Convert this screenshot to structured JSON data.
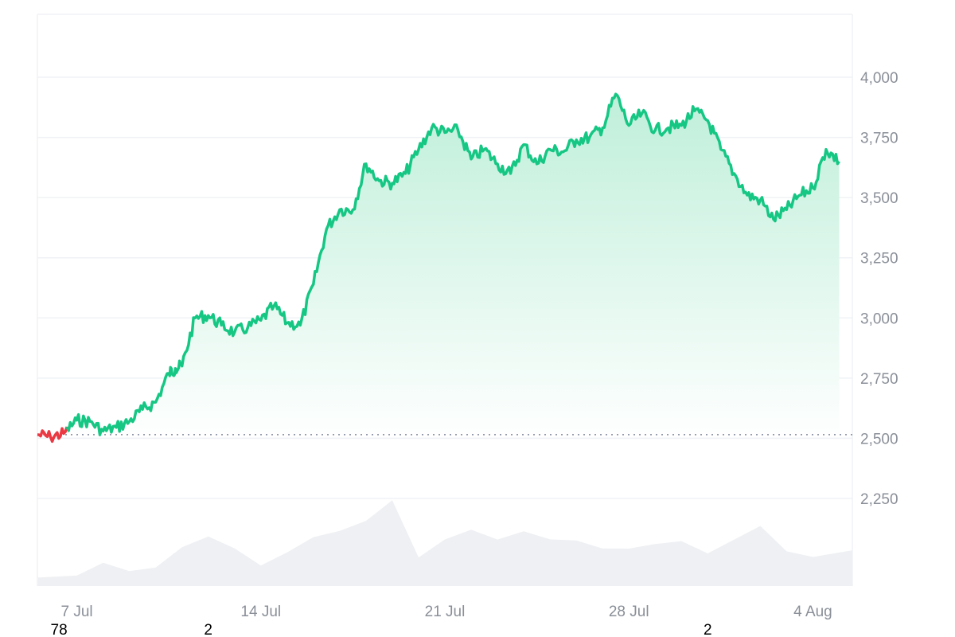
{
  "chart_data": {
    "type": "area",
    "x_axis": {
      "type": "date",
      "range": [
        "2024-07-06",
        "2024-08-05"
      ],
      "ticks": [
        {
          "date": "2024-07-07",
          "label": "7 Jul"
        },
        {
          "date": "2024-07-14",
          "label": "14 Jul"
        },
        {
          "date": "2024-07-21",
          "label": "21 Jul"
        },
        {
          "date": "2024-07-28",
          "label": "28 Jul"
        },
        {
          "date": "2024-08-04",
          "label": "4 Aug"
        }
      ]
    },
    "y_axis": {
      "position": "right",
      "range": [
        2000,
        4250
      ],
      "ticks": [
        {
          "value": 2250,
          "label": "2,250"
        },
        {
          "value": 2500,
          "label": "2,500"
        },
        {
          "value": 2750,
          "label": "2,750"
        },
        {
          "value": 3000,
          "label": "3,000"
        },
        {
          "value": 3250,
          "label": "3,250"
        },
        {
          "value": 3500,
          "label": "3,500"
        },
        {
          "value": 3750,
          "label": "3,750"
        },
        {
          "value": 4000,
          "label": "4,000"
        }
      ]
    },
    "grid": true,
    "baseline": {
      "value": 2515,
      "style": "dotted"
    },
    "price_series": {
      "x": [
        "2024-07-06T00:00",
        "2024-07-06T12:00",
        "2024-07-07T00:00",
        "2024-07-07T12:00",
        "2024-07-08T00:00",
        "2024-07-08T12:00",
        "2024-07-09T00:00",
        "2024-07-09T12:00",
        "2024-07-10T00:00",
        "2024-07-10T12:00",
        "2024-07-11T00:00",
        "2024-07-11T06:00",
        "2024-07-11T12:00",
        "2024-07-12T00:00",
        "2024-07-12T12:00",
        "2024-07-13T00:00",
        "2024-07-13T12:00",
        "2024-07-14T00:00",
        "2024-07-14T12:00",
        "2024-07-15T00:00",
        "2024-07-15T12:00",
        "2024-07-16T00:00",
        "2024-07-16T12:00",
        "2024-07-17T00:00",
        "2024-07-17T12:00",
        "2024-07-18T00:00",
        "2024-07-18T12:00",
        "2024-07-19T00:00",
        "2024-07-19T12:00",
        "2024-07-20T00:00",
        "2024-07-20T12:00",
        "2024-07-21T00:00",
        "2024-07-21T12:00",
        "2024-07-22T00:00",
        "2024-07-22T12:00",
        "2024-07-23T00:00",
        "2024-07-23T12:00",
        "2024-07-24T00:00",
        "2024-07-24T12:00",
        "2024-07-25T00:00",
        "2024-07-25T12:00",
        "2024-07-26T00:00",
        "2024-07-26T12:00",
        "2024-07-27T00:00",
        "2024-07-27T12:00",
        "2024-07-28T00:00",
        "2024-07-28T12:00",
        "2024-07-29T00:00",
        "2024-07-29T12:00",
        "2024-07-30T00:00",
        "2024-07-30T12:00",
        "2024-07-31T00:00",
        "2024-07-31T12:00",
        "2024-08-01T00:00",
        "2024-08-01T12:00",
        "2024-08-02T00:00",
        "2024-08-02T12:00",
        "2024-08-03T00:00",
        "2024-08-03T12:00",
        "2024-08-04T00:00",
        "2024-08-04T12:00",
        "2024-08-05T00:00",
        "2024-08-05T12:00"
      ],
      "y": [
        2515,
        2505,
        2520,
        2575,
        2570,
        2530,
        2545,
        2570,
        2620,
        2650,
        2770,
        2790,
        2800,
        3000,
        3010,
        2970,
        2940,
        2960,
        2990,
        3050,
        2980,
        2970,
        3140,
        3370,
        3450,
        3450,
        3640,
        3570,
        3560,
        3600,
        3700,
        3790,
        3770,
        3780,
        3660,
        3700,
        3640,
        3600,
        3720,
        3640,
        3700,
        3690,
        3740,
        3750,
        3790,
        3930,
        3800,
        3850,
        3780,
        3790,
        3800,
        3860,
        3820,
        3700,
        3600,
        3510,
        3490,
        3410,
        3450,
        3510,
        3540,
        3700,
        3650
      ]
    },
    "volume_series": {
      "x": [
        "2024-07-06",
        "2024-07-07",
        "2024-07-08",
        "2024-07-09",
        "2024-07-10",
        "2024-07-11",
        "2024-07-12",
        "2024-07-13",
        "2024-07-14",
        "2024-07-15",
        "2024-07-16",
        "2024-07-17",
        "2024-07-18",
        "2024-07-19",
        "2024-07-20",
        "2024-07-21",
        "2024-07-22",
        "2024-07-23",
        "2024-07-24",
        "2024-07-25",
        "2024-07-26",
        "2024-07-27",
        "2024-07-28",
        "2024-07-29",
        "2024-07-30",
        "2024-07-31",
        "2024-08-01",
        "2024-08-02",
        "2024-08-03",
        "2024-08-04",
        "2024-08-05"
      ],
      "relative": [
        0.1,
        0.14,
        0.2,
        0.22,
        0.26,
        0.42,
        0.62,
        0.4,
        0.22,
        0.48,
        0.55,
        0.65,
        0.78,
        0.95,
        0.4,
        0.58,
        0.62,
        0.58,
        0.6,
        0.55,
        0.62,
        0.4,
        0.44,
        0.5,
        0.48,
        0.46,
        0.56,
        0.66,
        0.44,
        0.3,
        0.44
      ]
    },
    "colors": {
      "line": "#16c784",
      "line_down": "#ea3943",
      "area_top": "#bfefda",
      "area_bottom": "#ffffff",
      "volume": "#eef0f3",
      "grid": "#eff2f5",
      "baseline": "#808a9d",
      "tick_text": "#8a8f98"
    }
  },
  "footnotes": [
    {
      "date": "2024-07-06",
      "label": "78"
    },
    {
      "date": "2024-07-12",
      "label": "2"
    },
    {
      "date": "2024-07-31",
      "label": "2"
    }
  ]
}
